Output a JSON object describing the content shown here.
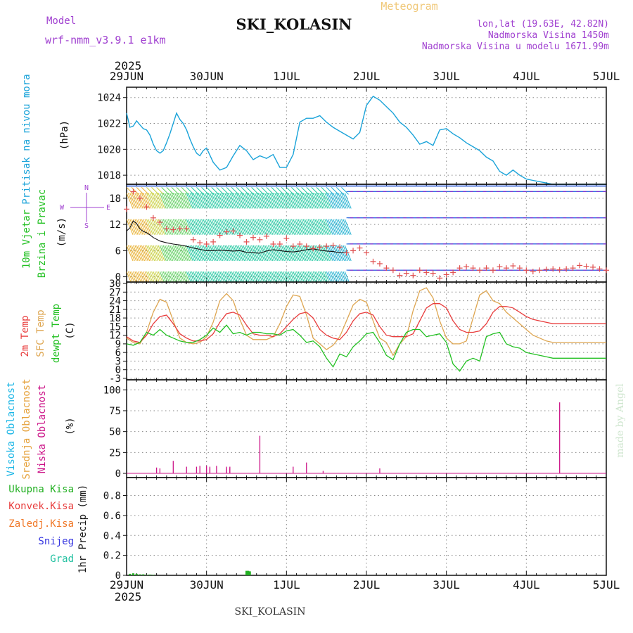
{
  "header": {
    "model_label": "Model",
    "model_name": "wrf-nmm_v3.9.1 e1km",
    "title": "Meteogram",
    "station": "SKI_KOLASIN",
    "lonlat": "lon,lat (19.63E, 42.82N)",
    "elevation": "Nadmorska Visina 1450m",
    "model_elevation": "Nadmorska Visina u modelu 1671.99m",
    "footer_station": "SKI_KOLASIN",
    "watermark": "made by Angel"
  },
  "time_axis": {
    "year": "2025",
    "labels": [
      "29JUN",
      "30JUN",
      "1JUL",
      "2JUL",
      "3JUL",
      "4JUL",
      "5JUL"
    ]
  },
  "colors": {
    "pressure": "#1aa3d9",
    "t2m": "#e83c3c",
    "sfc": "#dea651",
    "dewpt": "#22c022",
    "high_cloud": "#1ab6e6",
    "mid_cloud": "#e6a23c",
    "low_cloud": "#cc1488",
    "purple": "#a040d0",
    "precip_total": "#22b022",
    "precip_conv": "#e83c3c",
    "precip_frz": "#f07828",
    "snow": "#3333e0",
    "graupel": "#20c0a0"
  },
  "chart_data": [
    {
      "type": "line",
      "id": "pressure",
      "ylabel_left": "Pritisak na nivou mora",
      "unit": "(hPa)",
      "ylim": [
        1017.3,
        1024.8
      ],
      "yticks": [
        1018,
        1020,
        1022,
        1024
      ],
      "series": [
        {
          "name": "Pritisak na nivou mora",
          "x_hours": [
            0,
            1,
            2,
            3,
            4,
            5,
            6,
            7,
            8,
            9,
            10,
            11,
            12,
            13,
            14,
            15,
            16,
            17,
            18,
            19,
            20,
            21,
            22,
            23,
            24,
            26,
            28,
            30,
            32,
            34,
            36,
            38,
            40,
            42,
            44,
            46,
            48,
            50,
            52,
            54,
            56,
            58,
            60,
            62,
            64,
            66,
            68,
            70,
            72,
            74,
            76,
            78,
            80,
            82,
            84,
            86,
            88,
            90,
            92,
            94,
            96,
            98,
            100,
            102,
            104,
            106,
            108,
            110,
            112,
            114,
            116,
            118,
            120,
            122,
            124,
            126,
            128,
            130,
            132,
            134,
            136,
            138,
            140,
            142,
            144
          ],
          "values": [
            1022.8,
            1021.7,
            1021.8,
            1022.2,
            1021.9,
            1021.6,
            1021.5,
            1021.1,
            1020.4,
            1019.9,
            1019.7,
            1019.9,
            1020.5,
            1021.2,
            1022.0,
            1022.8,
            1022.3,
            1022.0,
            1021.5,
            1020.8,
            1020.2,
            1019.7,
            1019.5,
            1019.9,
            1020.1,
            1019.0,
            1018.4,
            1018.6,
            1019.5,
            1020.3,
            1019.9,
            1019.2,
            1019.5,
            1019.3,
            1019.6,
            1018.6,
            1018.6,
            1019.6,
            1022.1,
            1022.4,
            1022.4,
            1022.6,
            1022.1,
            1021.7,
            1021.4,
            1021.1,
            1020.8,
            1021.3,
            1023.4,
            1024.1,
            1023.8,
            1023.3,
            1022.8,
            1022.1,
            1021.7,
            1021.1,
            1020.4,
            1020.6,
            1020.3,
            1021.5,
            1021.6,
            1021.2,
            1020.9,
            1020.5,
            1020.2,
            1019.9,
            1019.4,
            1019.1,
            1018.3,
            1018.0,
            1018.4,
            1018.0,
            1017.7,
            1017.6,
            1017.5,
            1017.4,
            1017.3,
            1017.3,
            1017.3,
            1017.3,
            1017.3,
            1017.3,
            1017.3,
            1017.3,
            1017.3
          ]
        }
      ]
    },
    {
      "type": "line",
      "id": "wind",
      "ylabel_left": "10m Vjetar",
      "ylabel_left2": "Brzina i Pravac",
      "unit": "(m/s)",
      "compass": [
        "N",
        "W",
        "E",
        "S"
      ],
      "ylim": [
        -1.2,
        21.2
      ],
      "yticks": [
        0,
        6,
        12,
        18
      ],
      "series": [
        {
          "name": "Brzina",
          "x_hours": [
            0,
            1,
            2,
            3,
            4,
            5,
            6,
            7,
            8,
            9,
            10,
            12,
            14,
            16,
            18,
            20,
            22,
            24,
            26,
            28,
            30,
            32,
            34,
            36,
            38,
            40,
            42,
            44,
            46,
            48,
            50,
            52,
            54,
            56,
            58,
            60,
            62,
            64,
            66
          ],
          "values": [
            10.5,
            11.2,
            12.8,
            12.2,
            11.0,
            10.4,
            10.1,
            9.6,
            9.0,
            8.6,
            8.2,
            7.8,
            7.5,
            7.3,
            7.0,
            6.6,
            6.3,
            6.0,
            6.0,
            6.1,
            6.0,
            5.9,
            6.0,
            5.6,
            5.5,
            5.4,
            5.9,
            6.2,
            6.0,
            5.8,
            5.7,
            5.9,
            6.2,
            6.4,
            6.1,
            5.9,
            5.8,
            5.5,
            5.5
          ]
        },
        {
          "name": "Udari",
          "x_hours": [
            0,
            2,
            4,
            6,
            8,
            10,
            12,
            14,
            16,
            18,
            20,
            22,
            24,
            26,
            28,
            30,
            32,
            34,
            36,
            38,
            40,
            42,
            44,
            46,
            48,
            50,
            52,
            54,
            56,
            58,
            60,
            62,
            64,
            66,
            68,
            70,
            72,
            74,
            76,
            78,
            80,
            82,
            84,
            86,
            88,
            90,
            92,
            94,
            96,
            98,
            100,
            102,
            104,
            106,
            108,
            110,
            112,
            114,
            116,
            118,
            120,
            122,
            124,
            126,
            128,
            130,
            132,
            134,
            136,
            138,
            140,
            142,
            144
          ],
          "values": [
            15.5,
            19.5,
            18.0,
            16.0,
            13.5,
            12.5,
            11.0,
            10.8,
            11.0,
            11.0,
            8.5,
            7.8,
            7.5,
            8.0,
            9.5,
            10.3,
            10.5,
            9.5,
            8.0,
            9.0,
            8.5,
            9.3,
            7.5,
            7.5,
            8.8,
            7.0,
            7.5,
            7.0,
            6.5,
            6.8,
            7.0,
            7.2,
            6.8,
            5.5,
            6.0,
            6.6,
            5.5,
            3.5,
            3.0,
            2.0,
            1.5,
            0.3,
            0.8,
            0.3,
            1.5,
            1.0,
            0.8,
            -0.3,
            0.5,
            1.0,
            2.0,
            2.3,
            2.0,
            1.5,
            2.0,
            1.5,
            2.3,
            2.0,
            2.5,
            2.0,
            1.5,
            1.2,
            1.5,
            1.7,
            1.8,
            1.6,
            1.8,
            2.0,
            2.6,
            2.4,
            2.2,
            1.8,
            1.5
          ]
        }
      ]
    },
    {
      "type": "line",
      "id": "temperature",
      "ylabel_left": "2m Temp",
      "ylabel_left2": "SFC Temp",
      "ylabel_left3": "dewpt Temp",
      "unit": "(C)",
      "ylim": [
        -3.5,
        30.5
      ],
      "yticks": [
        -3,
        0,
        3,
        6,
        9,
        12,
        15,
        18,
        21,
        24,
        27,
        30
      ],
      "series": [
        {
          "name": "2m Temp",
          "x_hours": [
            0,
            2,
            4,
            6,
            8,
            10,
            12,
            14,
            16,
            18,
            20,
            22,
            24,
            26,
            28,
            30,
            32,
            34,
            36,
            38,
            40,
            42,
            44,
            46,
            48,
            50,
            52,
            54,
            56,
            58,
            60,
            62,
            64,
            66,
            68,
            70,
            72,
            74,
            76,
            78,
            80,
            82,
            84,
            86,
            88,
            90,
            92,
            94,
            96,
            98,
            100,
            102,
            104,
            106,
            108,
            110,
            112,
            114,
            116,
            118,
            120,
            122,
            124,
            126,
            128,
            130,
            132,
            134,
            136,
            138,
            140,
            142,
            144
          ],
          "values": [
            11.5,
            10.0,
            9.5,
            12.0,
            16.0,
            18.5,
            19.0,
            16.0,
            12.5,
            11.0,
            10.0,
            10.0,
            10.5,
            12.5,
            16.5,
            19.5,
            20.0,
            19.0,
            15.5,
            12.5,
            12.0,
            12.0,
            11.5,
            12.5,
            15.0,
            17.5,
            19.5,
            20.0,
            18.0,
            14.0,
            12.0,
            11.0,
            10.5,
            13.0,
            17.0,
            19.5,
            20.0,
            19.0,
            15.0,
            12.0,
            11.5,
            11.5,
            11.5,
            12.5,
            17.0,
            21.5,
            23.0,
            23.0,
            21.5,
            17.0,
            14.0,
            13.0,
            13.0,
            13.5,
            16.0,
            20.0,
            22.0,
            22.0,
            21.5,
            20.0,
            18.5,
            17.5,
            17.0,
            16.5,
            16.0,
            16.0,
            16.0,
            16.0,
            16.0,
            16.0,
            16.0,
            16.0,
            16.0
          ]
        },
        {
          "name": "SFC Temp",
          "x_hours": [
            0,
            2,
            4,
            6,
            8,
            10,
            12,
            14,
            16,
            18,
            20,
            22,
            24,
            26,
            28,
            30,
            32,
            34,
            36,
            38,
            40,
            42,
            44,
            46,
            48,
            50,
            52,
            54,
            56,
            58,
            60,
            62,
            64,
            66,
            68,
            70,
            72,
            74,
            76,
            78,
            80,
            82,
            84,
            86,
            88,
            90,
            92,
            94,
            96,
            98,
            100,
            102,
            104,
            106,
            108,
            110,
            112,
            114,
            116,
            118,
            120,
            122,
            124,
            126,
            128,
            130,
            132,
            134,
            136,
            138,
            140,
            142,
            144
          ],
          "values": [
            11.0,
            9.5,
            9.0,
            13.0,
            20.0,
            24.5,
            23.5,
            17.0,
            11.0,
            9.5,
            9.0,
            9.5,
            11.5,
            16.5,
            24.0,
            26.5,
            24.0,
            17.5,
            12.0,
            10.5,
            10.5,
            10.5,
            11.5,
            16.0,
            22.0,
            26.0,
            25.5,
            19.0,
            11.0,
            9.0,
            7.0,
            8.5,
            11.5,
            17.0,
            22.5,
            24.5,
            23.5,
            17.0,
            11.0,
            9.5,
            5.0,
            9.0,
            11.5,
            20.5,
            27.5,
            28.5,
            25.0,
            17.0,
            11.0,
            9.0,
            9.0,
            10.0,
            18.0,
            26.0,
            27.5,
            24.0,
            23.0,
            20.0,
            18.0,
            16.0,
            14.0,
            12.0,
            11.0,
            10.0,
            9.5,
            9.5,
            9.5,
            9.5,
            9.5,
            9.5,
            9.5,
            9.5,
            9.5
          ]
        },
        {
          "name": "dewpt Temp",
          "x_hours": [
            0,
            2,
            4,
            6,
            8,
            10,
            12,
            14,
            16,
            18,
            20,
            22,
            24,
            26,
            28,
            30,
            32,
            34,
            36,
            38,
            40,
            42,
            44,
            46,
            48,
            50,
            52,
            54,
            56,
            58,
            60,
            62,
            64,
            66,
            68,
            70,
            72,
            74,
            76,
            78,
            80,
            82,
            84,
            86,
            88,
            90,
            92,
            94,
            96,
            98,
            100,
            102,
            104,
            106,
            108,
            110,
            112,
            114,
            116,
            118,
            120,
            122,
            124,
            126,
            128,
            130,
            132,
            134,
            136,
            138,
            140,
            142,
            144
          ],
          "values": [
            9.0,
            8.5,
            9.5,
            13.0,
            12.0,
            14.0,
            12.0,
            11.0,
            10.0,
            9.5,
            9.5,
            10.5,
            12.0,
            14.5,
            13.0,
            15.5,
            12.5,
            13.0,
            12.0,
            13.0,
            13.0,
            12.5,
            12.5,
            12.0,
            13.5,
            14.0,
            12.0,
            9.5,
            10.0,
            8.0,
            4.0,
            1.0,
            5.5,
            4.5,
            8.0,
            10.0,
            12.5,
            13.0,
            9.5,
            5.0,
            3.5,
            9.0,
            13.0,
            14.0,
            14.0,
            11.5,
            12.0,
            12.5,
            9.5,
            2.0,
            -0.5,
            3.0,
            4.0,
            3.0,
            11.5,
            12.5,
            13.0,
            9.0,
            8.0,
            7.5,
            6.0,
            5.5,
            5.0,
            4.5,
            4.0,
            4.0,
            4.0,
            4.0,
            4.0,
            4.0,
            4.0,
            4.0,
            4.0
          ]
        }
      ]
    },
    {
      "type": "bar",
      "id": "cloud",
      "ylabel_left": "Visoka Oblacnost",
      "ylabel_left2": "Srednja Oblacnost",
      "ylabel_left3": "Niska Oblacnost",
      "unit": "(%)",
      "ylim": [
        -5,
        112
      ],
      "yticks": [
        0,
        25,
        50,
        75,
        100
      ],
      "series": [
        {
          "name": "Niska Oblacnost",
          "x_hours": [
            9,
            10,
            14,
            18,
            21,
            22,
            24,
            25,
            27,
            30,
            31
          ],
          "values": [
            7,
            6,
            15,
            8,
            8,
            9,
            9,
            8,
            9,
            8,
            8
          ]
        },
        {
          "name": "Niska Oblacnost (2)",
          "x_hours": [
            25,
            30,
            31,
            40,
            50,
            54,
            59,
            76,
            130
          ],
          "values": [
            6,
            6,
            6,
            45,
            8,
            13,
            3,
            6,
            85
          ]
        }
      ]
    },
    {
      "type": "bar",
      "id": "precip",
      "ylabel_right": "1hr Precip (mm)",
      "legend": [
        "Ukupna Kisa",
        "Konvek.Kisa",
        "Zaledj.Kisa",
        "Snijeg",
        "Grad"
      ],
      "ylim": [
        0,
        0.98
      ],
      "yticks": [
        0,
        0.2,
        0.4,
        0.6,
        0.8
      ],
      "series": [
        {
          "name": "Ukupna Kisa",
          "x_hours": [
            1,
            2,
            3,
            4,
            5,
            6,
            7,
            8,
            36,
            36.5,
            37
          ],
          "values": [
            0.015,
            0.02,
            0.015,
            0.01,
            0.01,
            0.005,
            0.008,
            0.005,
            0.045,
            0.045,
            0.04
          ]
        }
      ]
    }
  ]
}
